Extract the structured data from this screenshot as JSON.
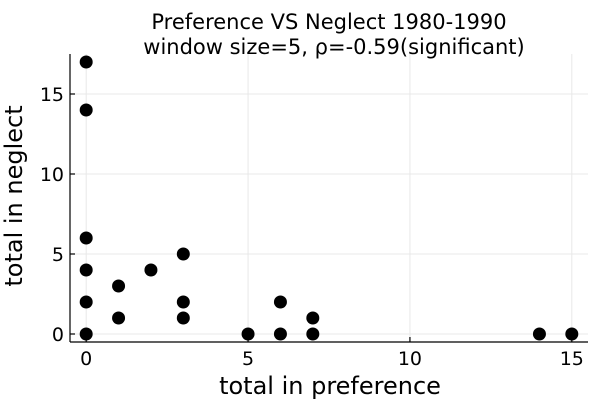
{
  "chart_data": {
    "type": "scatter",
    "title": "Preference VS Neglect 1980-1990",
    "subtitle": "window size=5, ρ=-0.59(significant)",
    "xlabel": "total in preference",
    "ylabel": "total in neglect",
    "xlim": [
      -0.5,
      15.5
    ],
    "ylim": [
      -0.5,
      17.5
    ],
    "xticks": [
      0,
      5,
      10,
      15
    ],
    "yticks": [
      0,
      5,
      10,
      15
    ],
    "grid": true,
    "legend": "none",
    "color": "#000000",
    "points": [
      {
        "x": 0,
        "y": 17
      },
      {
        "x": 0,
        "y": 14
      },
      {
        "x": 0,
        "y": 6
      },
      {
        "x": 0,
        "y": 4
      },
      {
        "x": 0,
        "y": 2
      },
      {
        "x": 0,
        "y": 0
      },
      {
        "x": 1,
        "y": 3
      },
      {
        "x": 1,
        "y": 1
      },
      {
        "x": 2,
        "y": 4
      },
      {
        "x": 3,
        "y": 5
      },
      {
        "x": 3,
        "y": 2
      },
      {
        "x": 3,
        "y": 1
      },
      {
        "x": 5,
        "y": 0
      },
      {
        "x": 6,
        "y": 2
      },
      {
        "x": 6,
        "y": 0
      },
      {
        "x": 7,
        "y": 1
      },
      {
        "x": 7,
        "y": 0
      },
      {
        "x": 14,
        "y": 0
      },
      {
        "x": 15,
        "y": 0
      }
    ]
  }
}
